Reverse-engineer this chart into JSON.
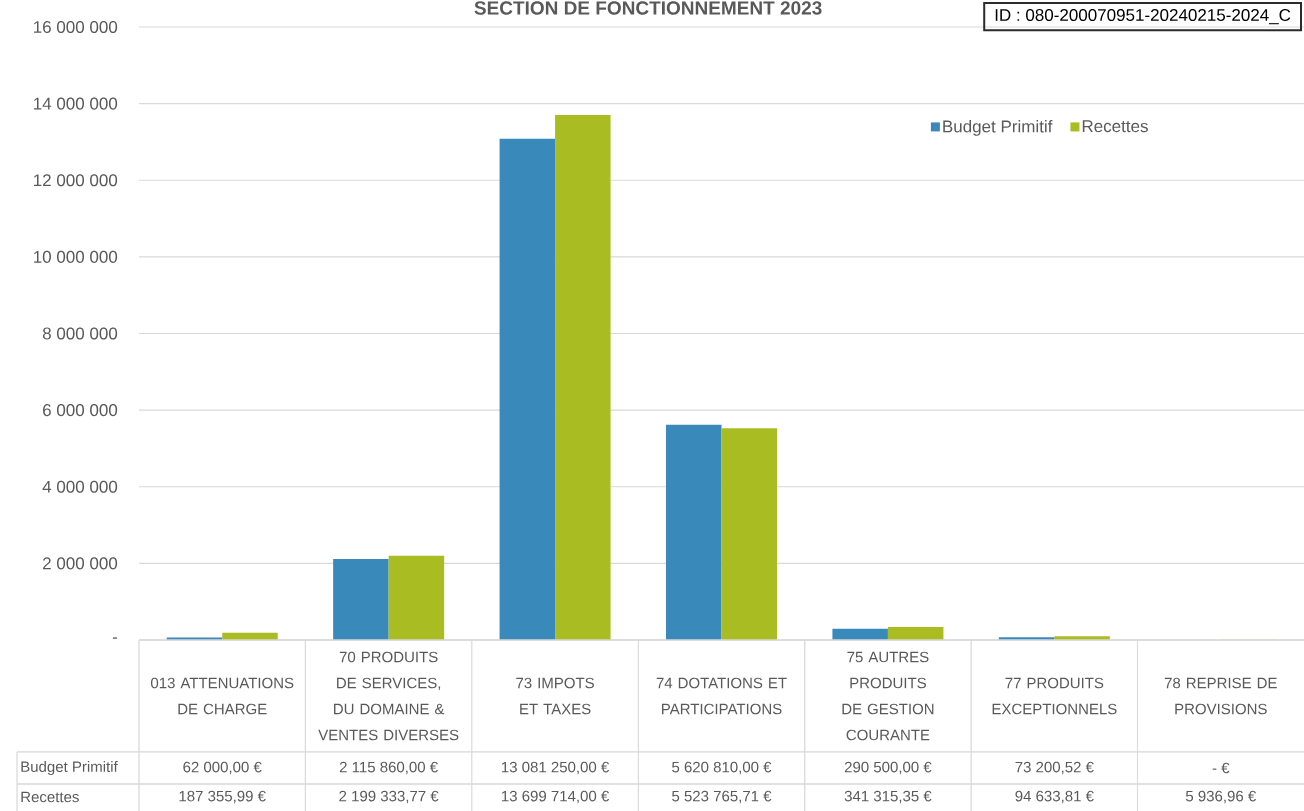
{
  "chart_data": {
    "type": "bar",
    "title": "SECTION DE FONCTIONNEMENT 2023",
    "categories": [
      "013 ATTENUATIONS DE CHARGE",
      "70 PRODUITS DE SERVICES, DU DOMAINE & VENTES DIVERSES",
      "73 IMPOTS ET TAXES",
      "74 DOTATIONS ET PARTICIPATIONS",
      "75 AUTRES PRODUITS DE GESTION COURANTE",
      "77 PRODUITS EXCEPTIONNELS",
      "78 REPRISE DE PROVISIONS"
    ],
    "series": [
      {
        "name": "Budget Primitif",
        "color": "#3a89bb",
        "values": [
          62000,
          2115860,
          13081250,
          5620810,
          290500,
          73200.52,
          0
        ],
        "value_labels": [
          "62 000,00 €",
          "2 115 860,00 €",
          "13 081 250,00 €",
          "5 620 810,00 €",
          "290 500,00 €",
          "73 200,52 €",
          "- €"
        ]
      },
      {
        "name": "Recettes",
        "color": "#a9bd22",
        "values": [
          187355.99,
          2199333.77,
          13699714,
          5523765.71,
          341315.35,
          94633.81,
          5936.96
        ],
        "value_labels": [
          "187 355,99 €",
          "2 199 333,77 €",
          "13 699 714,00 €",
          "5 523 765,71 €",
          "341 315,35 €",
          "94 633,81 €",
          "5 936,96 €"
        ]
      }
    ],
    "ylim": [
      0,
      16000000
    ],
    "yticks": [
      {
        "value": 0,
        "label": "-"
      },
      {
        "value": 2000000,
        "label": "2 000 000"
      },
      {
        "value": 4000000,
        "label": "4 000 000"
      },
      {
        "value": 6000000,
        "label": "6 000 000"
      },
      {
        "value": 8000000,
        "label": "8 000 000"
      },
      {
        "value": 10000000,
        "label": "10 000 000"
      },
      {
        "value": 12000000,
        "label": "12 000 000"
      },
      {
        "value": 14000000,
        "label": "14 000 000"
      },
      {
        "value": 16000000,
        "label": "16 000 000"
      }
    ],
    "grid": "y",
    "legend": "top right",
    "annotations": [
      "ID : 080-200070951-20240215-2024_C"
    ]
  }
}
